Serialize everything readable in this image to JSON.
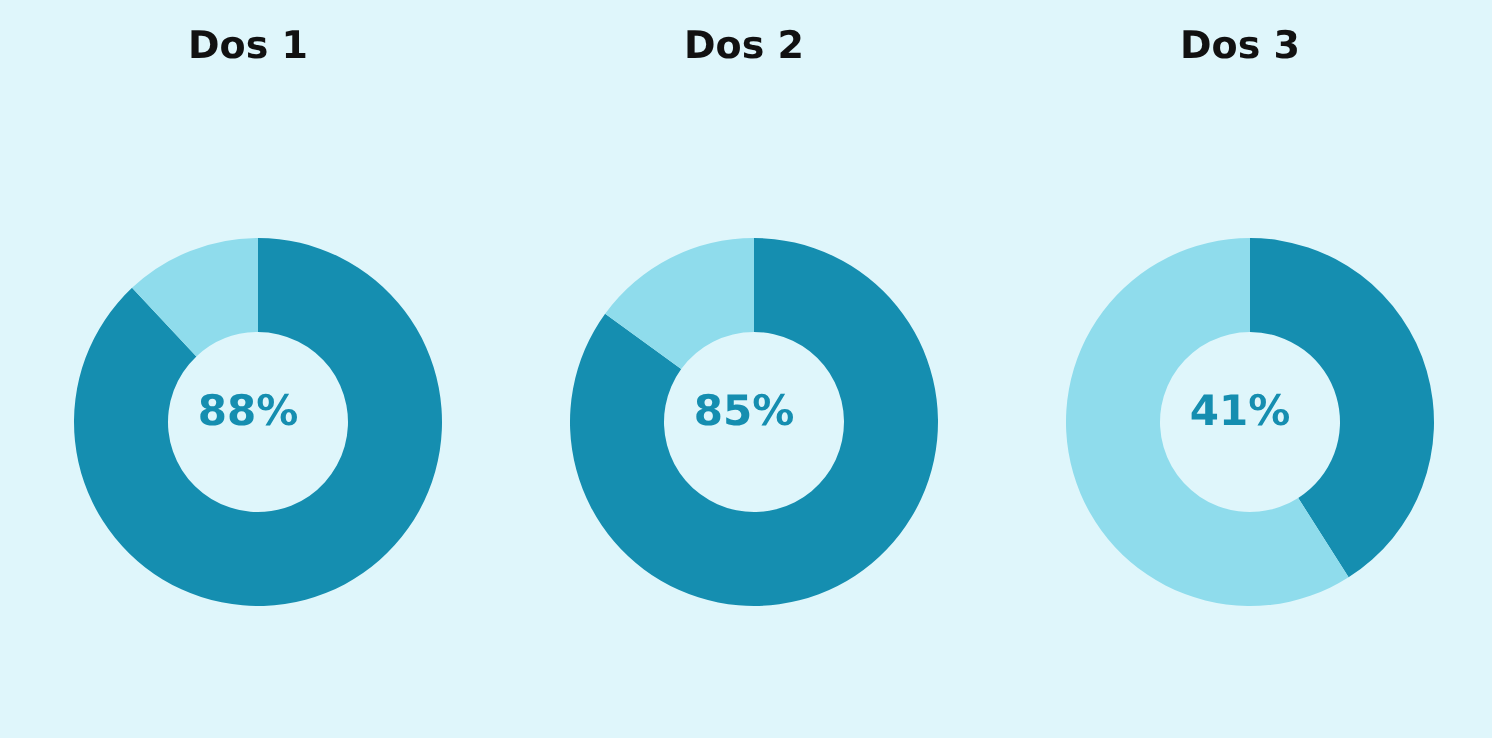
{
  "chart_data": [
    {
      "type": "donut",
      "title": "Dos 1",
      "categories": [
        null,
        null
      ],
      "values": [
        88,
        12
      ],
      "colors": [
        "#158eb0",
        "#8fdcec"
      ],
      "annotations": [
        "88%"
      ]
    },
    {
      "type": "donut",
      "title": "Dos 2",
      "categories": [
        null,
        null
      ],
      "values": [
        85,
        15
      ],
      "colors": [
        "#158eb0",
        "#8fdcec"
      ],
      "annotations": [
        "85%"
      ]
    },
    {
      "type": "donut",
      "title": "Dos 3",
      "categories": [
        null,
        null
      ],
      "values": [
        41,
        59
      ],
      "colors": [
        "#158eb0",
        "#8fdcec"
      ],
      "annotations": [
        "41%"
      ]
    }
  ]
}
